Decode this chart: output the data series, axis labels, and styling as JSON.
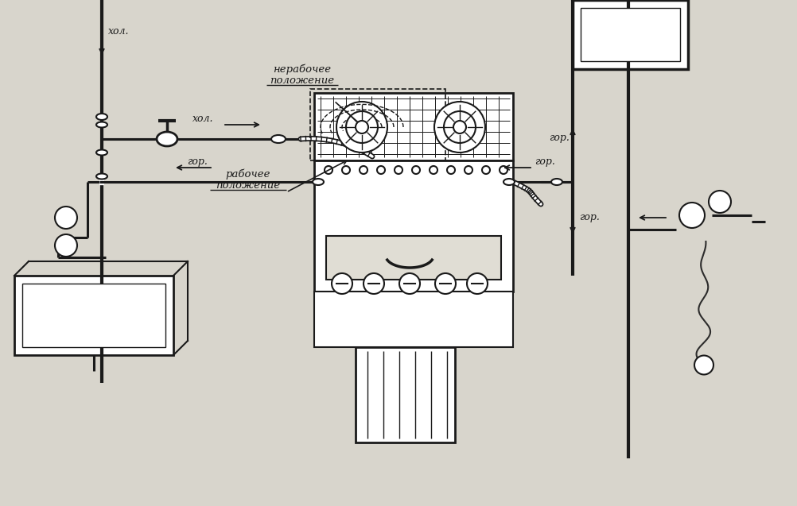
{
  "bg_color": "#d8d5cc",
  "line_color": "#1a1a1a",
  "text_color": "#1a1a1a",
  "labels": {
    "hol_top": "хол.",
    "hol_right": "хол.",
    "gor_left": "гор.",
    "gor_right": "гор.",
    "gor_down": "гор.",
    "gor_up": "гор.",
    "nerabochee": "нерабочее\nположение",
    "rabochee": "рабочее\nположение"
  },
  "figsize": [
    10.03,
    6.37
  ],
  "dpi": 100
}
